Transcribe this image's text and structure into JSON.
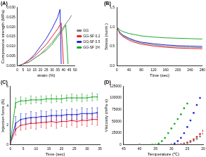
{
  "chart_data": [
    {
      "type": "line",
      "title": "(A)",
      "x_label": "strain (%)",
      "y_label": "Compressive strength (MPa)",
      "xlim": [
        0,
        50
      ],
      "xticks": [
        0,
        5,
        10,
        15,
        20,
        25,
        30,
        35,
        40,
        45,
        50
      ],
      "ylim": [
        0,
        0.03
      ],
      "yticks": [
        {
          "value": 0,
          "label": "0.000"
        },
        {
          "value": 0.005,
          "label": "0.005"
        },
        {
          "value": 0.01,
          "label": "0.010"
        },
        {
          "value": 0.015,
          "label": "0.015"
        },
        {
          "value": 0.02,
          "label": "0.020"
        },
        {
          "value": 0.025,
          "label": "0.025"
        },
        {
          "value": 0.03,
          "label": "0.030"
        }
      ],
      "grid": false,
      "legend": "right",
      "marker": "none",
      "line_style": "solid",
      "series": [
        {
          "name": "GG",
          "color": "#7f7f7f",
          "x": [
            0,
            5,
            10,
            15,
            20,
            25,
            30,
            35,
            40,
            45,
            47
          ],
          "values": [
            0,
            0.001,
            0.002,
            0.004,
            0.006,
            0.009,
            0.012,
            0.016,
            0.02,
            0.024,
            0.026
          ]
        },
        {
          "name": "GG-SF 0.25%",
          "color": "#e8202a",
          "x": [
            0,
            5,
            10,
            15,
            20,
            25,
            30,
            35,
            38,
            40
          ],
          "values": [
            0,
            0.001,
            0.003,
            0.005,
            0.008,
            0.011,
            0.015,
            0.019,
            0.022,
            0.001
          ]
        },
        {
          "name": "GG-SF 0.5%",
          "color": "#1f2bd6",
          "x": [
            0,
            5,
            10,
            15,
            20,
            25,
            30,
            35,
            37,
            38
          ],
          "values": [
            0,
            0.001,
            0.003,
            0.006,
            0.01,
            0.014,
            0.019,
            0.025,
            0.029,
            0.001
          ]
        },
        {
          "name": "GG-SF 1%",
          "color": "#1faa2a",
          "x": [
            0,
            5,
            10,
            15,
            20,
            25,
            30,
            35,
            40,
            42,
            44
          ],
          "values": [
            0,
            0.001,
            0.002,
            0.004,
            0.006,
            0.008,
            0.011,
            0.015,
            0.019,
            0.021,
            0.001
          ]
        }
      ]
    },
    {
      "type": "line",
      "title": "(B)",
      "x_label": "Time (sec)",
      "y_label": "Stress (norm.)",
      "xlim": [
        0,
        280
      ],
      "xticks": [
        0,
        40,
        80,
        120,
        160,
        200,
        240,
        280
      ],
      "ylim": [
        0,
        1.5
      ],
      "yticks": [
        {
          "value": 0,
          "label": "0.0"
        },
        {
          "value": 0.5,
          "label": "0.5"
        },
        {
          "value": 1,
          "label": "1.0"
        },
        {
          "value": 1.5,
          "label": "1.5"
        }
      ],
      "grid": false,
      "marker": "none",
      "line_style": "solid",
      "x": [
        0,
        10,
        20,
        40,
        60,
        80,
        120,
        160,
        200,
        240,
        280
      ],
      "series": [
        {
          "name": "GG",
          "color": "#7f7f7f",
          "values": [
            1,
            0.84,
            0.77,
            0.69,
            0.63,
            0.59,
            0.54,
            0.51,
            0.49,
            0.48,
            0.47
          ]
        },
        {
          "name": "GG-SF 0.25%",
          "color": "#e8202a",
          "values": [
            1,
            0.82,
            0.75,
            0.66,
            0.6,
            0.56,
            0.51,
            0.48,
            0.46,
            0.45,
            0.44
          ]
        },
        {
          "name": "GG-SF 0.5%",
          "color": "#1f2bd6",
          "values": [
            1,
            0.86,
            0.79,
            0.71,
            0.65,
            0.61,
            0.57,
            0.54,
            0.52,
            0.51,
            0.5
          ]
        },
        {
          "name": "GG-SF 1%",
          "color": "#1faa2a",
          "values": [
            1,
            0.92,
            0.88,
            0.83,
            0.8,
            0.77,
            0.74,
            0.72,
            0.71,
            0.7,
            0.69
          ]
        }
      ]
    },
    {
      "type": "line",
      "title": "(C)",
      "x_label": "Time (sec)",
      "y_label": "Injection force (N)",
      "xlim": [
        0,
        35
      ],
      "xticks": [
        0,
        5,
        10,
        15,
        20,
        25,
        30,
        35
      ],
      "ylim": [
        0,
        6
      ],
      "yticks": [
        0,
        2,
        4,
        6
      ],
      "grid": false,
      "marker": "circle",
      "line_style": "solid",
      "x": [
        0,
        2,
        4,
        6,
        8,
        10,
        12,
        14,
        16,
        18,
        20,
        22,
        24,
        26,
        28,
        30,
        32,
        34
      ],
      "series": [
        {
          "name": "GG-SF 0.25%",
          "color": "#e8202a",
          "values": [
            0.2,
            1.6,
            2.0,
            2.1,
            2.2,
            2.2,
            2.3,
            2.3,
            2.4,
            2.3,
            2.4,
            2.4,
            2.5,
            2.4,
            2.5,
            2.5,
            2.6,
            2.6
          ],
          "errors": [
            0.1,
            0.6,
            0.5,
            0.5,
            0.5,
            0.6,
            0.5,
            0.6,
            0.5,
            0.6,
            0.5,
            0.6,
            0.5,
            0.6,
            0.5,
            0.6,
            0.5,
            0.6
          ]
        },
        {
          "name": "GG-SF 0.5%",
          "color": "#1f2bd6",
          "values": [
            0.3,
            2.2,
            2.6,
            2.7,
            2.8,
            2.8,
            2.9,
            2.9,
            3.0,
            3.0,
            3.0,
            3.1,
            3.1,
            3.1,
            3.2,
            3.2,
            3.2,
            3.3
          ],
          "errors": [
            0.1,
            0.7,
            0.6,
            0.5,
            0.6,
            0.5,
            0.6,
            0.5,
            0.6,
            0.5,
            0.6,
            0.5,
            0.6,
            0.5,
            0.6,
            0.5,
            0.6,
            0.5
          ]
        },
        {
          "name": "GG-SF 1%",
          "color": "#1faa2a",
          "values": [
            0.5,
            4.3,
            4.5,
            4.5,
            4.6,
            4.6,
            4.6,
            4.7,
            4.7,
            4.7,
            4.7,
            4.8,
            4.8,
            4.8,
            4.8,
            4.8,
            4.9,
            4.9
          ],
          "errors": [
            0.2,
            0.5,
            0.4,
            0.3,
            0.4,
            0.3,
            0.4,
            0.3,
            0.4,
            0.3,
            0.4,
            0.3,
            0.4,
            0.3,
            0.4,
            0.3,
            0.4,
            0.3
          ]
        }
      ]
    },
    {
      "type": "scatter",
      "title": "(D)",
      "x_label": "Temperature (℃)",
      "y_label": "Viscosity (mPa·s)",
      "xlim": [
        45,
        20
      ],
      "xticks": [
        45,
        40,
        35,
        30,
        25,
        20
      ],
      "ylim": [
        0,
        125000
      ],
      "yticks": [
        0,
        25000,
        50000,
        75000,
        100000,
        125000
      ],
      "grid": false,
      "marker": "circle",
      "series": [
        {
          "name": "GG",
          "color": "#7f7f7f",
          "x": [
            45,
            40,
            35,
            30,
            28,
            27,
            26,
            25,
            24,
            23,
            22,
            21,
            20
          ],
          "values": [
            0,
            0,
            0,
            0,
            300,
            1000,
            2000,
            4000,
            6000,
            9000,
            13000,
            18000,
            24000
          ]
        },
        {
          "name": "GG-SF 0.25%",
          "color": "#e8202a",
          "x": [
            45,
            40,
            35,
            30,
            28,
            27,
            26,
            25,
            24,
            23,
            22,
            21,
            20
          ],
          "values": [
            0,
            0,
            0,
            0,
            500,
            1500,
            3000,
            5000,
            8000,
            12000,
            17000,
            23000,
            30000
          ]
        },
        {
          "name": "GG-SF 0.5%",
          "color": "#1f2bd6",
          "x": [
            45,
            40,
            35,
            30,
            29,
            28,
            27,
            26,
            25,
            24,
            23,
            22,
            21
          ],
          "values": [
            0,
            0,
            0,
            500,
            3000,
            8000,
            15000,
            25000,
            38000,
            52000,
            68000,
            85000,
            100000
          ]
        },
        {
          "name": "GG-SF 1%",
          "color": "#1faa2a",
          "x": [
            45,
            40,
            36,
            34,
            33,
            32,
            31,
            30,
            29,
            28,
            27,
            26,
            25
          ],
          "values": [
            0,
            0,
            500,
            3000,
            8000,
            15000,
            25000,
            35000,
            45000,
            55000,
            65000,
            78000,
            88000
          ]
        }
      ]
    }
  ]
}
